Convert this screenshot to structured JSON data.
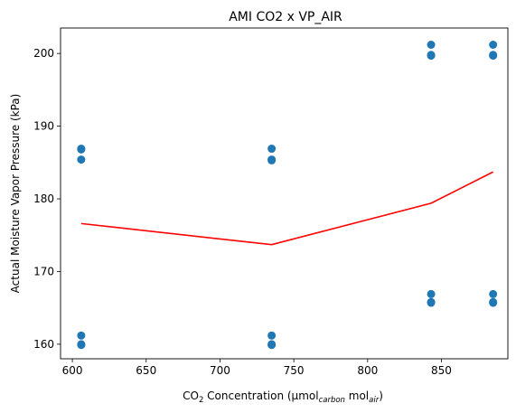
{
  "chart_data": {
    "type": "scatter",
    "title": "AMI CO2 x VP_AIR",
    "xlabel": {
      "prefix": "CO",
      "sub": "2",
      "middle": " Concentration (μmol",
      "sub2": "carbon",
      "middle2": " mol",
      "sub3": "air",
      "suffix": ")"
    },
    "ylabel": "Actual Moisture Vapor Pressure (kPa)",
    "xlim": [
      592,
      895
    ],
    "ylim": [
      158,
      203.5
    ],
    "xticks": [
      600,
      650,
      700,
      750,
      800,
      850
    ],
    "yticks": [
      160,
      170,
      180,
      190,
      200
    ],
    "grid": false,
    "legend": "none",
    "colors": {
      "points": "#1f77b4",
      "line": "#ff0000"
    },
    "series": [
      {
        "type": "scatter",
        "x": [
          606,
          606,
          606,
          606,
          606,
          606,
          735,
          735,
          735,
          735,
          735,
          735,
          843,
          843,
          843,
          843,
          843,
          843,
          885,
          885,
          885,
          885,
          885,
          885
        ],
        "y": [
          186.9,
          186.8,
          185.4,
          161.2,
          160.0,
          159.9,
          186.9,
          185.4,
          185.3,
          161.2,
          160.0,
          159.9,
          201.2,
          199.8,
          199.7,
          166.9,
          165.8,
          165.7,
          201.2,
          199.8,
          199.7,
          166.9,
          165.8,
          165.7
        ]
      },
      {
        "type": "line",
        "x": [
          606,
          735,
          843,
          885
        ],
        "y": [
          176.6,
          173.7,
          179.4,
          183.7
        ]
      }
    ]
  }
}
